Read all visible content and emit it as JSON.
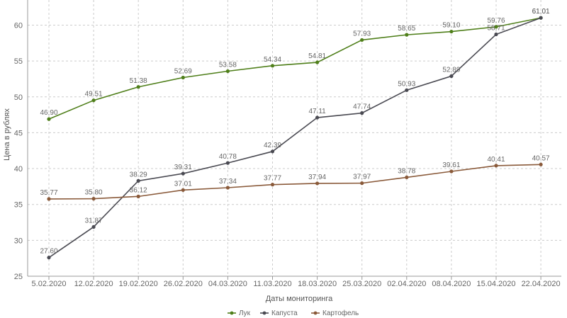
{
  "chart_data": {
    "type": "line",
    "title": "",
    "xlabel": "Даты мониторинга",
    "ylabel": "Цена в рублях",
    "ylim": [
      25,
      63.5
    ],
    "yticks": [
      25,
      30,
      35,
      40,
      45,
      50,
      55,
      60
    ],
    "grid": true,
    "legend_position": "bottom-center",
    "categories": [
      "5.02.2020",
      "12.02.2020",
      "19.02.2020",
      "26.02.2020",
      "04.03.2020",
      "11.03.2020",
      "18.03.2020",
      "25.03.2020",
      "02.04.2020",
      "08.04.2020",
      "15.04.2020",
      "22.04.2020"
    ],
    "series": [
      {
        "name": "Лук",
        "color": "#4f7f1a",
        "values": [
          46.9,
          49.51,
          51.38,
          52.69,
          53.58,
          54.34,
          54.81,
          57.93,
          58.65,
          59.1,
          59.76,
          61.01
        ],
        "labels": [
          "46.90",
          "49.51",
          "51.38",
          "52.69",
          "53.58",
          "54.34",
          "54.81",
          "57.93",
          "58.65",
          "59.10",
          "59.76",
          "61.01"
        ]
      },
      {
        "name": "Капуста",
        "color": "#4a4a52",
        "values": [
          27.6,
          31.87,
          38.29,
          39.31,
          40.78,
          42.39,
          47.11,
          47.74,
          50.93,
          52.89,
          58.71,
          61.01
        ],
        "labels": [
          "27.60",
          "31.87",
          "38.29",
          "39.31",
          "40.78",
          "42.39",
          "47.11",
          "47.74",
          "50.93",
          "52.89",
          "58.71",
          "61.01"
        ]
      },
      {
        "name": "Картофель",
        "color": "#8a5a3a",
        "values": [
          35.77,
          35.8,
          36.12,
          37.01,
          37.34,
          37.77,
          37.94,
          37.97,
          38.78,
          39.61,
          40.41,
          40.57
        ],
        "labels": [
          "35.77",
          "35.80",
          "36.12",
          "37.01",
          "37.34",
          "37.77",
          "37.94",
          "37.97",
          "38.78",
          "39.61",
          "40.41",
          "40.57"
        ]
      }
    ]
  }
}
